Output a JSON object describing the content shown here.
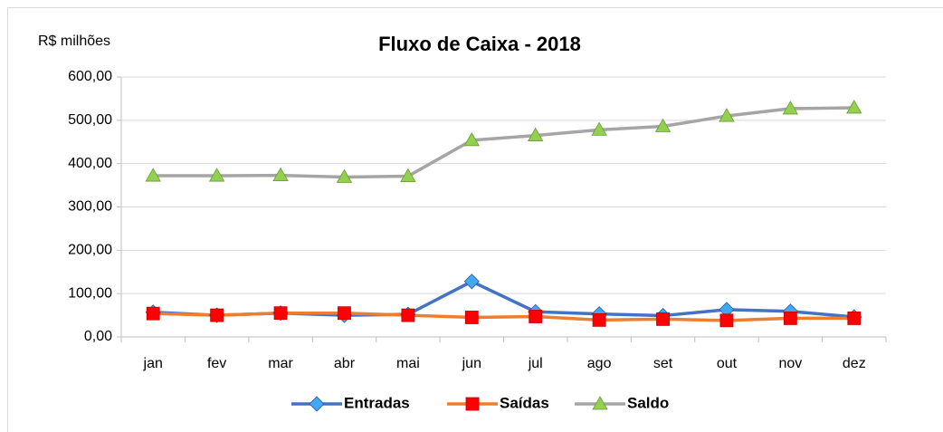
{
  "chart_data": {
    "type": "line",
    "title": "Fluxo de Caixa - 2018",
    "y_label": "R$ milhões",
    "categories": [
      "jan",
      "fev",
      "mar",
      "abr",
      "mai",
      "jun",
      "jul",
      "ago",
      "set",
      "out",
      "nov",
      "dez"
    ],
    "series": [
      {
        "name": "Entradas",
        "color": "#4472c4",
        "marker": "diamond",
        "marker_color": "#3fa9f5",
        "values": [
          57,
          50,
          55,
          50,
          52,
          128,
          58,
          53,
          49,
          63,
          59,
          46
        ]
      },
      {
        "name": "Saídas",
        "color": "#ed7d31",
        "marker": "square",
        "marker_color": "#ff0000",
        "values": [
          54,
          50,
          55,
          55,
          50,
          45,
          47,
          39,
          41,
          38,
          43,
          43
        ]
      },
      {
        "name": "Saldo",
        "color": "#a5a5a5",
        "marker": "triangle",
        "marker_color": "#92d050",
        "values": [
          372,
          372,
          373,
          369,
          371,
          454,
          465,
          478,
          486,
          510,
          527,
          529
        ]
      }
    ],
    "ylim": [
      0,
      600
    ],
    "yticks": [
      {
        "value": 0,
        "label": "0,00"
      },
      {
        "value": 100,
        "label": "100,00"
      },
      {
        "value": 200,
        "label": "200,00"
      },
      {
        "value": 300,
        "label": "300,00"
      },
      {
        "value": 400,
        "label": "400,00"
      },
      {
        "value": 500,
        "label": "500,00"
      },
      {
        "value": 600,
        "label": "600,00"
      }
    ],
    "grid": true,
    "legend": "bottom"
  }
}
